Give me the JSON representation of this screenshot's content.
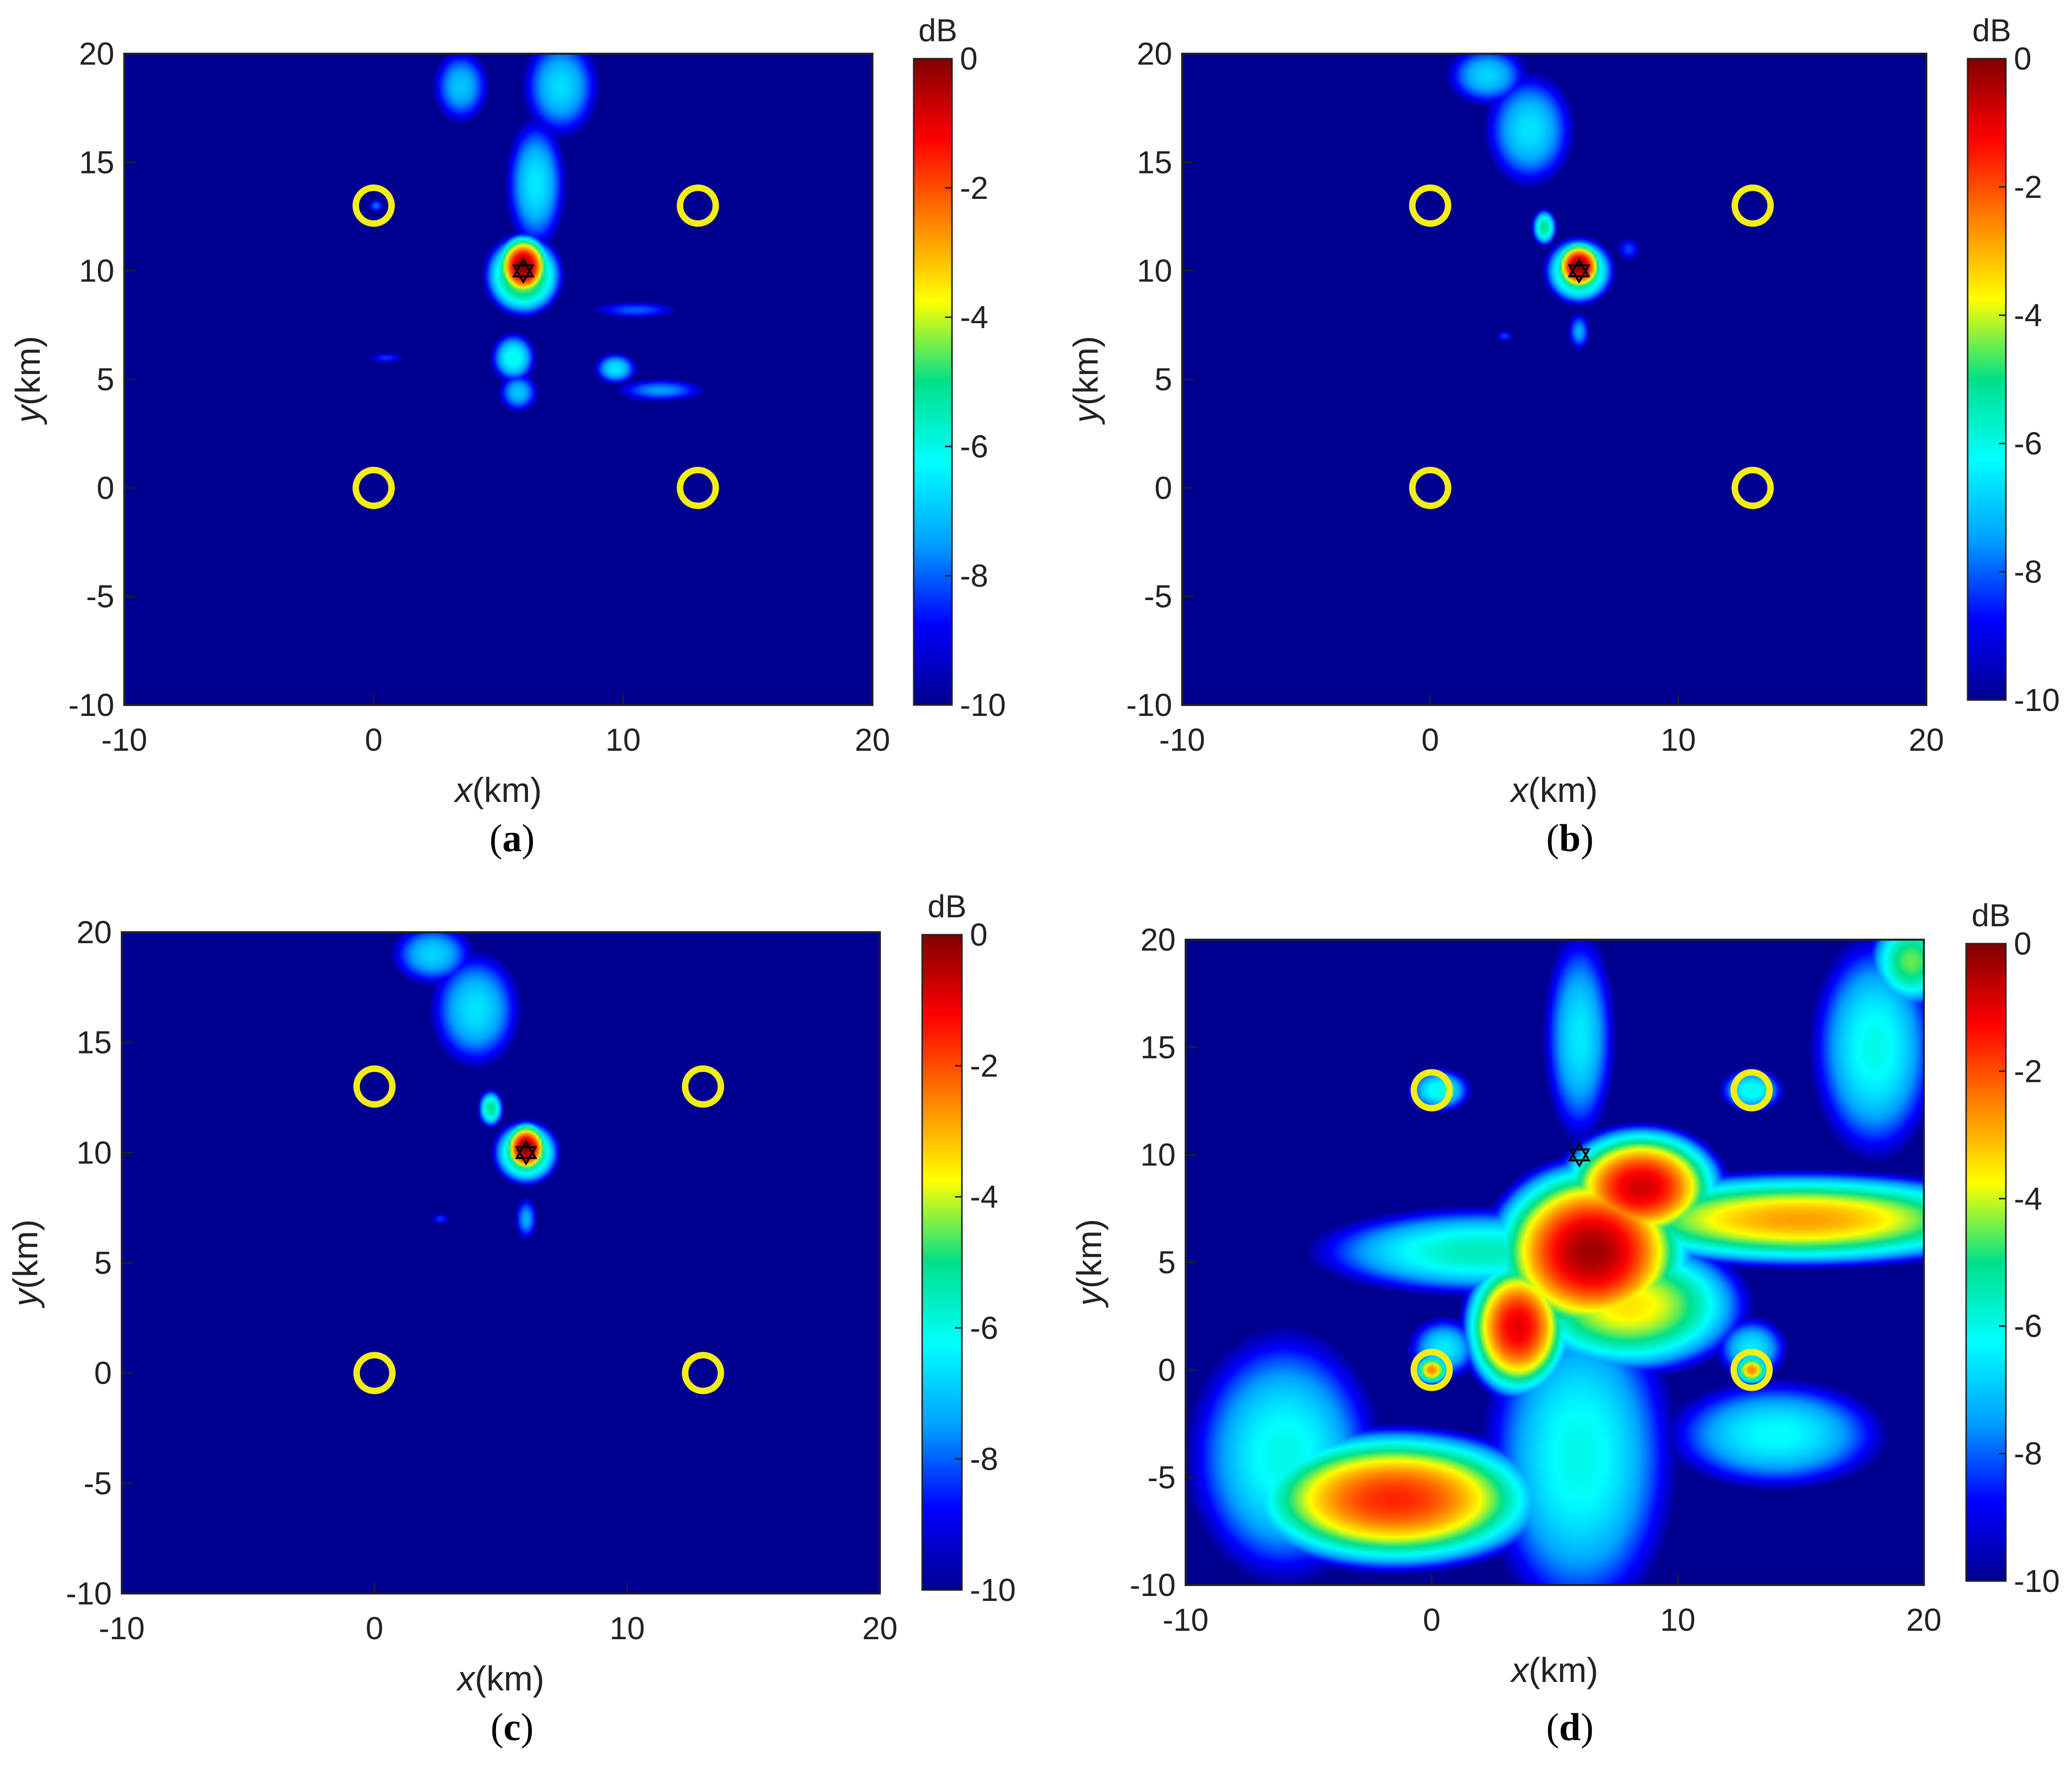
{
  "colors": {
    "background": "#00008f",
    "site_marker": "#f2ee14",
    "target_marker": "#000000",
    "colormap": [
      "#00008f",
      "#0000ff",
      "#00a0ff",
      "#00ffff",
      "#00e08a",
      "#ffff00",
      "#ff8000",
      "#ff0000",
      "#800000"
    ]
  },
  "chart_data": [
    {
      "type": "heatmap",
      "panel": "(a)",
      "panel_letter": "a",
      "xlabel_var": "x",
      "xlabel_unit": "(km)",
      "ylabel_var": "y",
      "ylabel_unit": "(km)",
      "xlim": [
        -10,
        20
      ],
      "ylim": [
        -10,
        20
      ],
      "xticks": [
        -10,
        0,
        10,
        20
      ],
      "yticks": [
        -10,
        -5,
        0,
        5,
        10,
        15,
        20
      ],
      "colorbar_label": "dB",
      "clim": [
        -10,
        0
      ],
      "cticks": [
        0,
        -2,
        -4,
        -6,
        -8,
        -10
      ],
      "sites": [
        [
          0,
          0
        ],
        [
          13,
          0
        ],
        [
          0,
          13
        ],
        [
          13,
          13
        ]
      ],
      "target": [
        6,
        10
      ],
      "peak": [
        6,
        10
      ],
      "blobs": [
        {
          "x": 6.0,
          "y": 10.2,
          "sx": 0.55,
          "sy": 0.75,
          "db": 0
        },
        {
          "x": 6.0,
          "y": 9.8,
          "sx": 1.0,
          "sy": 1.2,
          "db": -3.8
        },
        {
          "x": 6.5,
          "y": 14.0,
          "sx": 1.0,
          "sy": 2.5,
          "db": -6.5
        },
        {
          "x": 7.5,
          "y": 18.5,
          "sx": 1.3,
          "sy": 2.0,
          "db": -6.7
        },
        {
          "x": 3.5,
          "y": 18.5,
          "sx": 1.0,
          "sy": 1.5,
          "db": -7.0
        },
        {
          "x": 5.6,
          "y": 6.0,
          "sx": 0.7,
          "sy": 0.9,
          "db": -6.0
        },
        {
          "x": 5.8,
          "y": 4.4,
          "sx": 0.7,
          "sy": 0.8,
          "db": -7.0
        },
        {
          "x": 9.7,
          "y": 5.5,
          "sx": 0.7,
          "sy": 0.6,
          "db": -6.5
        },
        {
          "x": 11.5,
          "y": 4.5,
          "sx": 1.7,
          "sy": 0.5,
          "db": -7.5
        },
        {
          "x": 10.5,
          "y": 8.2,
          "sx": 1.8,
          "sy": 0.4,
          "db": -8.0
        },
        {
          "x": 0.5,
          "y": 6.0,
          "sx": 0.8,
          "sy": 0.25,
          "db": -8.3
        },
        {
          "x": 0.1,
          "y": 13.0,
          "sx": 0.3,
          "sy": 0.3,
          "db": -7.8
        }
      ]
    },
    {
      "type": "heatmap",
      "panel": "(b)",
      "panel_letter": "b",
      "xlabel_var": "x",
      "xlabel_unit": "(km)",
      "ylabel_var": "y",
      "ylabel_unit": "(km)",
      "xlim": [
        -10,
        20
      ],
      "ylim": [
        -10,
        20
      ],
      "xticks": [
        -10,
        0,
        10,
        20
      ],
      "yticks": [
        -10,
        -5,
        0,
        5,
        10,
        15,
        20
      ],
      "colorbar_label": "dB",
      "clim": [
        -10,
        0
      ],
      "cticks": [
        0,
        -2,
        -4,
        -6,
        -8,
        -10
      ],
      "sites": [
        [
          0,
          0
        ],
        [
          13,
          0
        ],
        [
          0,
          13
        ],
        [
          13,
          13
        ]
      ],
      "target": [
        6,
        10
      ],
      "peak": [
        6,
        10
      ],
      "blobs": [
        {
          "x": 6.0,
          "y": 10.2,
          "sx": 0.5,
          "sy": 0.6,
          "db": 0
        },
        {
          "x": 6.0,
          "y": 10.0,
          "sx": 0.9,
          "sy": 1.0,
          "db": -4.0
        },
        {
          "x": 4.6,
          "y": 12.0,
          "sx": 0.35,
          "sy": 0.6,
          "db": -5.0
        },
        {
          "x": 4.0,
          "y": 16.5,
          "sx": 1.5,
          "sy": 2.2,
          "db": -6.6
        },
        {
          "x": 2.3,
          "y": 19.0,
          "sx": 1.4,
          "sy": 1.2,
          "db": -6.8
        },
        {
          "x": 6.0,
          "y": 7.2,
          "sx": 0.4,
          "sy": 0.8,
          "db": -7.3
        },
        {
          "x": 3.0,
          "y": 7.0,
          "sx": 0.4,
          "sy": 0.25,
          "db": -8.2
        },
        {
          "x": 8.0,
          "y": 11.0,
          "sx": 0.5,
          "sy": 0.6,
          "db": -8.2
        }
      ]
    },
    {
      "type": "heatmap",
      "panel": "(c)",
      "panel_letter": "c",
      "xlabel_var": "x",
      "xlabel_unit": "(km)",
      "ylabel_var": "y",
      "ylabel_unit": "(km)",
      "xlim": [
        -10,
        20
      ],
      "ylim": [
        -10,
        20
      ],
      "xticks": [
        -10,
        0,
        10,
        20
      ],
      "yticks": [
        -10,
        -5,
        0,
        5,
        10,
        15,
        20
      ],
      "colorbar_label": "dB",
      "clim": [
        -10,
        0
      ],
      "cticks": [
        0,
        -2,
        -4,
        -6,
        -8,
        -10
      ],
      "sites": [
        [
          0,
          0
        ],
        [
          13,
          0
        ],
        [
          0,
          13
        ],
        [
          13,
          13
        ]
      ],
      "target": [
        6,
        10
      ],
      "peak": [
        6,
        10
      ],
      "blobs": [
        {
          "x": 6.0,
          "y": 10.2,
          "sx": 0.45,
          "sy": 0.6,
          "db": 0
        },
        {
          "x": 6.0,
          "y": 10.0,
          "sx": 0.85,
          "sy": 0.95,
          "db": -4.0
        },
        {
          "x": 4.6,
          "y": 12.0,
          "sx": 0.35,
          "sy": 0.6,
          "db": -5.0
        },
        {
          "x": 4.0,
          "y": 16.5,
          "sx": 1.5,
          "sy": 2.2,
          "db": -6.6
        },
        {
          "x": 2.3,
          "y": 19.0,
          "sx": 1.4,
          "sy": 1.2,
          "db": -6.8
        },
        {
          "x": 6.0,
          "y": 7.0,
          "sx": 0.4,
          "sy": 0.9,
          "db": -7.3
        },
        {
          "x": 2.6,
          "y": 7.0,
          "sx": 0.4,
          "sy": 0.25,
          "db": -8.3
        }
      ]
    },
    {
      "type": "heatmap",
      "panel": "(d)",
      "panel_letter": "d",
      "xlabel_var": "x",
      "xlabel_unit": "(km)",
      "ylabel_var": "y",
      "ylabel_unit": "(km)",
      "xlim": [
        -10,
        20
      ],
      "ylim": [
        -10,
        20
      ],
      "xticks": [
        -10,
        0,
        10,
        20
      ],
      "yticks": [
        -10,
        -5,
        0,
        5,
        10,
        15,
        20
      ],
      "colorbar_label": "dB",
      "clim": [
        -10,
        0
      ],
      "cticks": [
        0,
        -2,
        -4,
        -6,
        -8,
        -10
      ],
      "sites": [
        [
          0,
          0
        ],
        [
          13,
          0
        ],
        [
          0,
          13
        ],
        [
          13,
          13
        ]
      ],
      "target": [
        6,
        10
      ],
      "peak": [
        6.5,
        5.5
      ],
      "blobs": [
        {
          "x": 6.5,
          "y": 5.5,
          "sx": 2.2,
          "sy": 2.2,
          "db": -0.3
        },
        {
          "x": 8.5,
          "y": 8.5,
          "sx": 1.8,
          "sy": 1.5,
          "db": -0.8
        },
        {
          "x": 3.5,
          "y": 2.0,
          "sx": 1.2,
          "sy": 1.8,
          "db": -1.0
        },
        {
          "x": -1.5,
          "y": -6.0,
          "sx": 3.5,
          "sy": 1.8,
          "db": -1.6
        },
        {
          "x": 15.0,
          "y": 7.0,
          "sx": 5.5,
          "sy": 1.3,
          "db": -2.8
        },
        {
          "x": 8.0,
          "y": 3.0,
          "sx": 3.0,
          "sy": 2.0,
          "db": -3.5
        },
        {
          "x": 2.0,
          "y": 5.5,
          "sx": 5.0,
          "sy": 1.5,
          "db": -5.5
        },
        {
          "x": -6.0,
          "y": -4.0,
          "sx": 3.0,
          "sy": 4.5,
          "db": -6.0
        },
        {
          "x": 6.0,
          "y": -4.0,
          "sx": 3.0,
          "sy": 6.0,
          "db": -6.0
        },
        {
          "x": 14.0,
          "y": -3.0,
          "sx": 3.5,
          "sy": 2.0,
          "db": -6.2
        },
        {
          "x": 18.0,
          "y": 15.0,
          "sx": 2.0,
          "sy": 4.0,
          "db": -6.0
        },
        {
          "x": 19.5,
          "y": 19.0,
          "sx": 1.2,
          "sy": 1.5,
          "db": -4.5
        },
        {
          "x": 6.0,
          "y": 15.5,
          "sx": 1.2,
          "sy": 4.0,
          "db": -6.5
        },
        {
          "x": 0.3,
          "y": 13.0,
          "sx": 1.0,
          "sy": 0.8,
          "db": -6.0
        },
        {
          "x": 13.0,
          "y": 13.0,
          "sx": 1.0,
          "sy": 0.8,
          "db": -6.0
        },
        {
          "x": 0.0,
          "y": 0.0,
          "sx": 0.4,
          "sy": 0.4,
          "db": -2.5
        },
        {
          "x": 13.0,
          "y": 0.0,
          "sx": 0.4,
          "sy": 0.4,
          "db": -2.5
        },
        {
          "x": 0.5,
          "y": 1.0,
          "sx": 1.2,
          "sy": 1.2,
          "db": -6.5
        },
        {
          "x": 13.0,
          "y": 1.0,
          "sx": 1.2,
          "sy": 1.2,
          "db": -6.5
        }
      ]
    }
  ]
}
